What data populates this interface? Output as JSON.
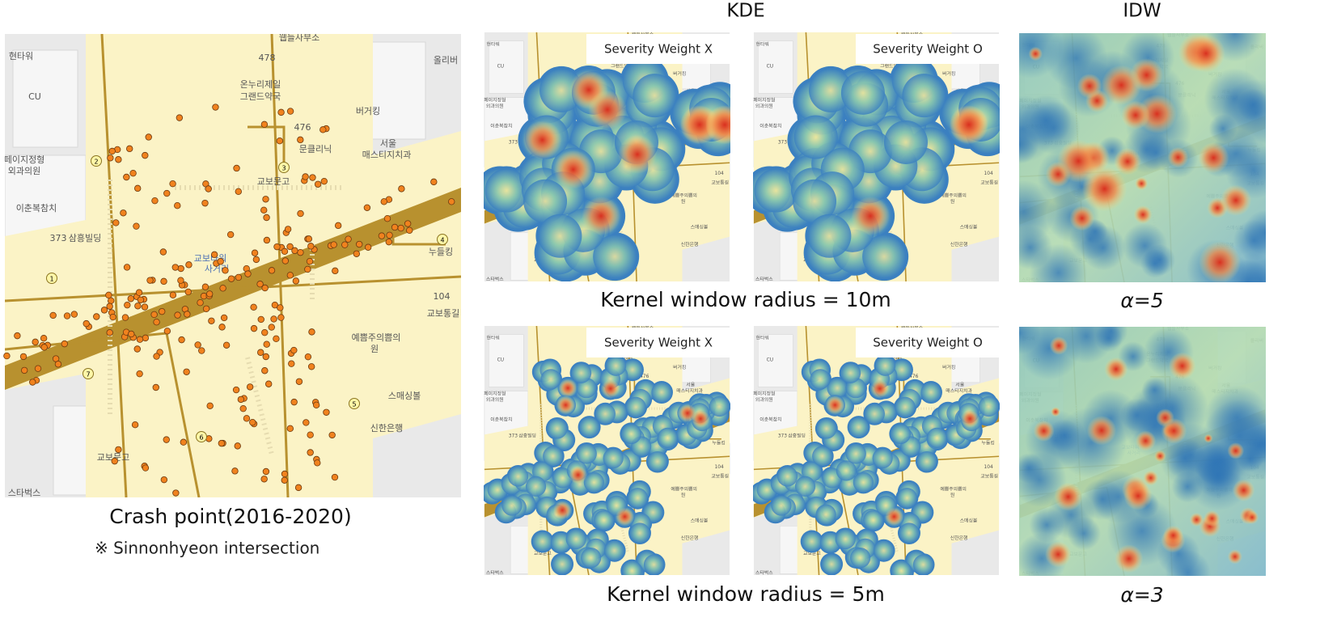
{
  "figure": {
    "kde_header": "KDE",
    "idw_header": "IDW"
  },
  "crash_map": {
    "caption": "Crash point(2016-2020)",
    "note": "※ Sinnonhyeon intersection",
    "labels": [
      "웹들사부소",
      "현타워",
      "CU",
      "478",
      "온누리제일",
      "그랜드약국",
      "476",
      "문클리닉",
      "버거킹",
      "서울",
      "매스티지치과",
      "올리버",
      "페이지정형",
      "외과의원",
      "이춘복참치",
      "373",
      "삼흥빌딩",
      "교보문고",
      "교보타워",
      "사거리",
      "누들킹",
      "104",
      "교보통길",
      "예쁨주의쁨의",
      "원",
      "스매싱볼",
      "신한은행",
      "교보문고",
      "스타벅스"
    ],
    "markers": [
      "1",
      "2",
      "3",
      "4",
      "5",
      "6",
      "7"
    ]
  },
  "kde": {
    "row_captions": [
      "Kernel window radius = 10m",
      "Kernel window radius = 5m"
    ],
    "weight_labels": [
      "Severity Weight X",
      "Severity Weight O"
    ]
  },
  "idw": {
    "row_captions": [
      "α=5",
      "α=3"
    ]
  }
}
